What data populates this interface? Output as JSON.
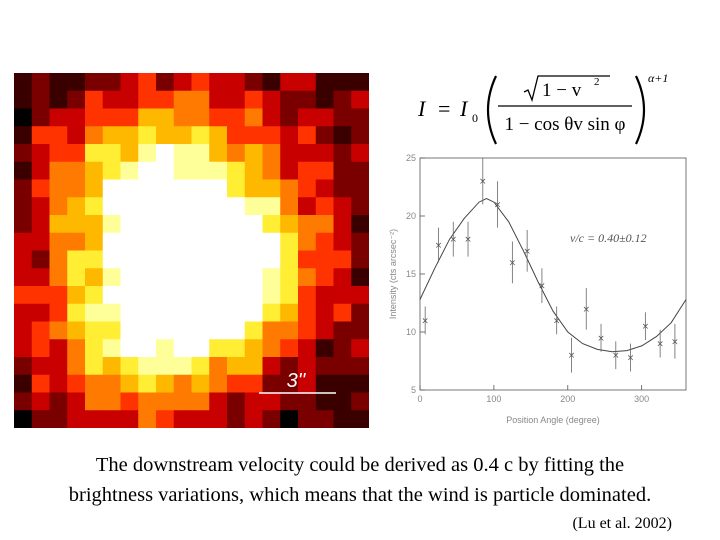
{
  "equation": {
    "lhs": "I",
    "eq": "=",
    "i0": "I",
    "i0_sub": "0",
    "numerator": "1 − v",
    "numerator_sup": "2",
    "denominator": "1 − cos θv sin φ",
    "exponent": "α+1"
  },
  "image": {
    "scale_bar_label": "3''",
    "palette": [
      "#000000",
      "#3a0000",
      "#7a0000",
      "#c80000",
      "#ff3300",
      "#ff7a00",
      "#ffb800",
      "#ffee33",
      "#ffff99",
      "#ffffff"
    ]
  },
  "chart_data": {
    "type": "scatter",
    "xlabel": "Position Angle (degree)",
    "ylabel": "Intensity (cts arcsec⁻²)",
    "xlim": [
      0,
      360
    ],
    "ylim": [
      5,
      25
    ],
    "xticks": [
      0,
      100,
      200,
      300
    ],
    "yticks": [
      5,
      10,
      15,
      20,
      25
    ],
    "annotation": "v/c = 0.40±0.12",
    "points": [
      {
        "x": 7,
        "y": 11.0,
        "err": 1.2
      },
      {
        "x": 25,
        "y": 17.5,
        "err": 1.5
      },
      {
        "x": 45,
        "y": 18.0,
        "err": 1.5
      },
      {
        "x": 65,
        "y": 18.0,
        "err": 1.5
      },
      {
        "x": 85,
        "y": 23.0,
        "err": 2.0
      },
      {
        "x": 105,
        "y": 21.0,
        "err": 2.0
      },
      {
        "x": 125,
        "y": 16.0,
        "err": 1.8
      },
      {
        "x": 145,
        "y": 17.0,
        "err": 1.8
      },
      {
        "x": 165,
        "y": 14.0,
        "err": 1.5
      },
      {
        "x": 185,
        "y": 11.0,
        "err": 1.2
      },
      {
        "x": 205,
        "y": 8.0,
        "err": 1.5
      },
      {
        "x": 225,
        "y": 12.0,
        "err": 1.8
      },
      {
        "x": 245,
        "y": 9.5,
        "err": 1.2
      },
      {
        "x": 265,
        "y": 8.0,
        "err": 1.2
      },
      {
        "x": 285,
        "y": 7.8,
        "err": 1.2
      },
      {
        "x": 305,
        "y": 10.5,
        "err": 1.2
      },
      {
        "x": 325,
        "y": 9.0,
        "err": 1.2
      },
      {
        "x": 345,
        "y": 9.2,
        "err": 1.5
      }
    ],
    "fit": {
      "x": [
        0,
        20,
        40,
        60,
        80,
        90,
        100,
        120,
        140,
        160,
        180,
        200,
        220,
        240,
        260,
        280,
        300,
        320,
        340,
        360
      ],
      "y": [
        12.8,
        15.5,
        18.0,
        19.8,
        21.2,
        21.5,
        21.2,
        19.5,
        17.0,
        14.3,
        11.8,
        10.0,
        9.0,
        8.5,
        8.3,
        8.4,
        8.8,
        9.6,
        10.8,
        12.8
      ]
    }
  },
  "caption": {
    "line1": "The downstream velocity could be derived as 0.4 c by fitting the",
    "line2": "brightness variations, which means that the wind is particle dominated.",
    "citation": "(Lu et al. 2002)"
  }
}
